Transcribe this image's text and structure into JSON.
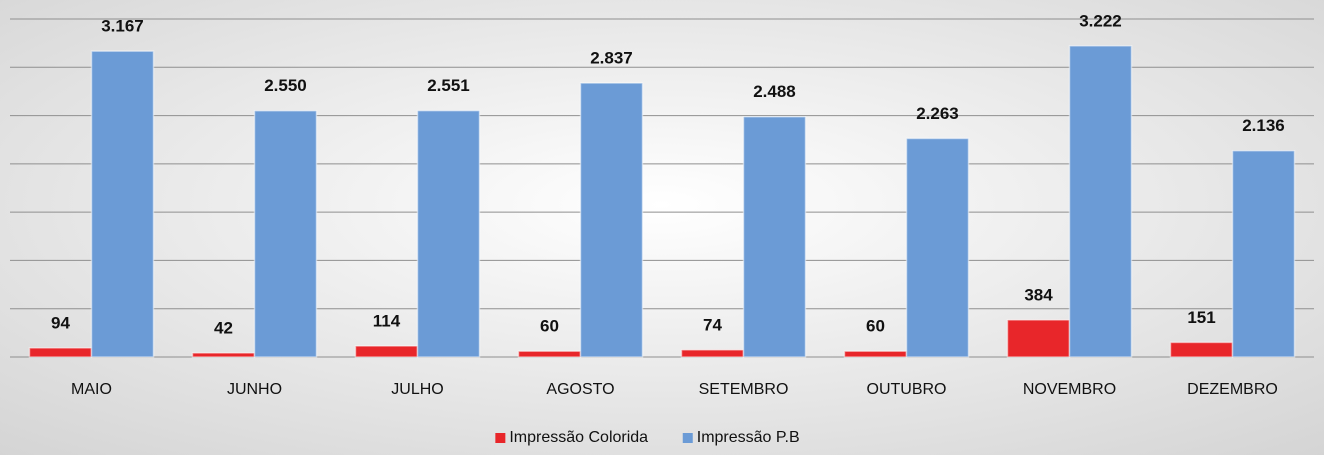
{
  "chart_data": {
    "type": "bar",
    "categories": [
      "MAIO",
      "JUNHO",
      "JULHO",
      "AGOSTO",
      "SETEMBRO",
      "OUTUBRO",
      "NOVEMBRO",
      "DEZEMBRO"
    ],
    "series": [
      {
        "name": "Impressão Colorida",
        "color": "#e8262a",
        "values": [
          94,
          42,
          114,
          60,
          74,
          60,
          384,
          151
        ]
      },
      {
        "name": "Impressão P.B",
        "color": "#6b9bd6",
        "values": [
          3167,
          2550,
          2551,
          2837,
          2488,
          2263,
          3222,
          2136
        ],
        "value_labels": [
          "3.167",
          "2.550",
          "2.551",
          "2.837",
          "2.488",
          "2.263",
          "3.222",
          "2.136"
        ]
      }
    ],
    "ylim": [
      0,
      3500
    ],
    "yticks": [
      0,
      500,
      1000,
      1500,
      2000,
      2500,
      3000,
      3500
    ],
    "grid": true,
    "legend": "bottom"
  }
}
